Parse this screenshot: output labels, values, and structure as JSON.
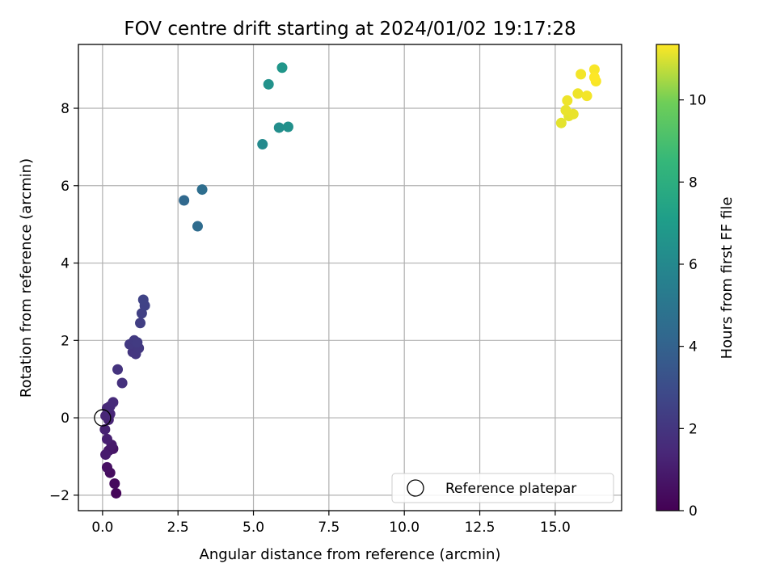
{
  "chart_data": {
    "type": "scatter",
    "title": "FOV centre drift starting at 2024/01/02 19:17:28",
    "xlabel": "Angular distance from reference (arcmin)",
    "ylabel": "Rotation from reference (arcmin)",
    "xlim": [
      -0.8,
      17.2
    ],
    "ylim": [
      -2.4,
      9.65
    ],
    "xticks": [
      0.0,
      2.5,
      5.0,
      7.5,
      10.0,
      12.5,
      15.0
    ],
    "xtick_labels": [
      "0.0",
      "2.5",
      "5.0",
      "7.5",
      "10.0",
      "12.5",
      "15.0"
    ],
    "yticks": [
      -2,
      0,
      2,
      4,
      6,
      8
    ],
    "ytick_labels": [
      "−2",
      "0",
      "2",
      "4",
      "6",
      "8"
    ],
    "grid": true,
    "legend_position": "lower-right",
    "series": [
      {
        "name": "Reference platepar",
        "marker": "hollow-circle",
        "points": [
          {
            "x": 0.0,
            "y": 0.0
          }
        ]
      },
      {
        "name": "",
        "marker": "filled-circle",
        "points": [
          {
            "x": 0.45,
            "y": -1.95,
            "hours": 0.2
          },
          {
            "x": 0.4,
            "y": -1.7,
            "hours": 0.3
          },
          {
            "x": 0.25,
            "y": -1.42,
            "hours": 0.45
          },
          {
            "x": 0.15,
            "y": -1.28,
            "hours": 0.55
          },
          {
            "x": 0.35,
            "y": -0.8,
            "hours": 0.7
          },
          {
            "x": 0.2,
            "y": -0.85,
            "hours": 0.8
          },
          {
            "x": 0.3,
            "y": -0.7,
            "hours": 0.9
          },
          {
            "x": 0.1,
            "y": -0.95,
            "hours": 1.0
          },
          {
            "x": 0.15,
            "y": -0.55,
            "hours": 1.1
          },
          {
            "x": 0.08,
            "y": -0.3,
            "hours": 1.2
          },
          {
            "x": 0.2,
            "y": -0.05,
            "hours": 1.3
          },
          {
            "x": 0.1,
            "y": 0.05,
            "hours": 1.35
          },
          {
            "x": 0.25,
            "y": 0.1,
            "hours": 1.4
          },
          {
            "x": 0.15,
            "y": 0.25,
            "hours": 1.45
          },
          {
            "x": 0.25,
            "y": 0.3,
            "hours": 1.5
          },
          {
            "x": 0.35,
            "y": 0.4,
            "hours": 1.55
          },
          {
            "x": 0.65,
            "y": 0.9,
            "hours": 1.8
          },
          {
            "x": 0.5,
            "y": 1.25,
            "hours": 1.9
          },
          {
            "x": 1.0,
            "y": 1.7,
            "hours": 2.0
          },
          {
            "x": 1.1,
            "y": 1.65,
            "hours": 2.05
          },
          {
            "x": 1.2,
            "y": 1.8,
            "hours": 2.1
          },
          {
            "x": 0.9,
            "y": 1.9,
            "hours": 2.15
          },
          {
            "x": 1.05,
            "y": 2.0,
            "hours": 2.2
          },
          {
            "x": 1.15,
            "y": 1.95,
            "hours": 2.25
          },
          {
            "x": 1.25,
            "y": 2.45,
            "hours": 2.35
          },
          {
            "x": 1.3,
            "y": 2.7,
            "hours": 2.45
          },
          {
            "x": 1.4,
            "y": 2.9,
            "hours": 2.55
          },
          {
            "x": 1.35,
            "y": 3.05,
            "hours": 2.6
          },
          {
            "x": 2.7,
            "y": 5.62,
            "hours": 4.3
          },
          {
            "x": 3.15,
            "y": 4.95,
            "hours": 4.5
          },
          {
            "x": 3.3,
            "y": 5.9,
            "hours": 4.6
          },
          {
            "x": 5.3,
            "y": 7.07,
            "hours": 6.1
          },
          {
            "x": 5.85,
            "y": 7.5,
            "hours": 6.3
          },
          {
            "x": 6.15,
            "y": 7.52,
            "hours": 6.4
          },
          {
            "x": 5.5,
            "y": 8.62,
            "hours": 6.5
          },
          {
            "x": 5.95,
            "y": 9.05,
            "hours": 6.7
          },
          {
            "x": 15.2,
            "y": 7.62,
            "hours": 11.1
          },
          {
            "x": 15.45,
            "y": 7.8,
            "hours": 11.1
          },
          {
            "x": 15.6,
            "y": 7.85,
            "hours": 11.15
          },
          {
            "x": 15.35,
            "y": 7.95,
            "hours": 11.15
          },
          {
            "x": 15.4,
            "y": 8.2,
            "hours": 11.2
          },
          {
            "x": 15.75,
            "y": 8.38,
            "hours": 11.2
          },
          {
            "x": 16.05,
            "y": 8.32,
            "hours": 11.25
          },
          {
            "x": 15.85,
            "y": 8.88,
            "hours": 11.25
          },
          {
            "x": 16.3,
            "y": 9.0,
            "hours": 11.3
          },
          {
            "x": 16.35,
            "y": 8.7,
            "hours": 11.3
          },
          {
            "x": 16.3,
            "y": 8.8,
            "hours": 11.35
          }
        ]
      }
    ],
    "colorbar": {
      "label": "Hours from first FF file",
      "colormap": "viridis",
      "range": [
        0,
        11.35
      ],
      "ticks": [
        0,
        2,
        4,
        6,
        8,
        10
      ],
      "tick_labels": [
        "0",
        "2",
        "4",
        "6",
        "8",
        "10"
      ]
    }
  }
}
